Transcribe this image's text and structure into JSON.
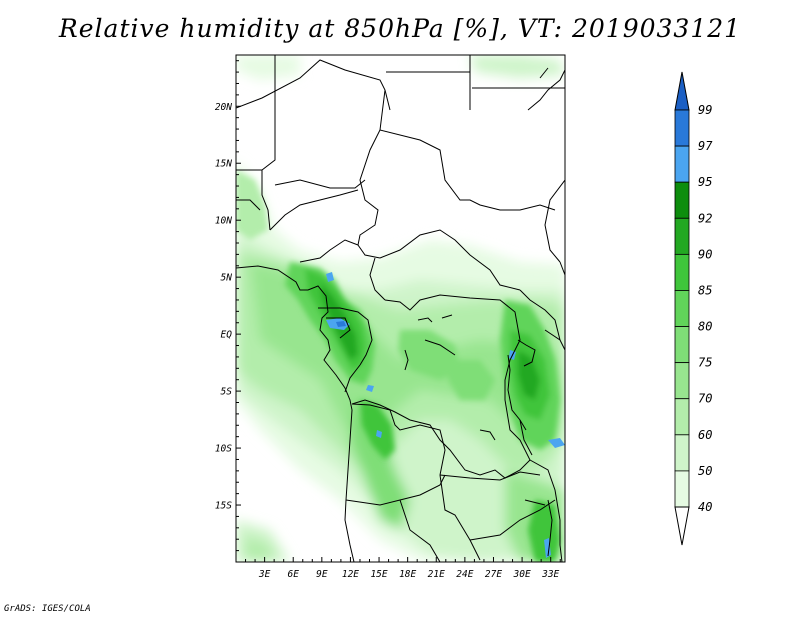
{
  "title": "Relative humidity at 850hPa [%], VT: 2019033121",
  "credit": "GrADS: IGES/COLA",
  "map": {
    "lon_range": [
      0,
      34.5
    ],
    "lat_range": [
      -20,
      24.5
    ],
    "lat_ticks": [
      "20N",
      "15N",
      "10N",
      "5N",
      "EQ",
      "5S",
      "10S",
      "15S"
    ],
    "lon_ticks": [
      "3E",
      "6E",
      "9E",
      "12E",
      "15E",
      "18E",
      "21E",
      "24E",
      "27E",
      "30E",
      "33E"
    ]
  },
  "colorbar": {
    "levels": [
      "40",
      "50",
      "60",
      "70",
      "75",
      "80",
      "85",
      "90",
      "92",
      "95",
      "97",
      "99"
    ],
    "colors": [
      "#ffffff",
      "#e6fbe3",
      "#cff4ca",
      "#b3edab",
      "#98e58f",
      "#7fde77",
      "#61d45a",
      "#3fc53b",
      "#23a822",
      "#0d8d0d",
      "#4ba5f0",
      "#2979d9",
      "#1b5fc4"
    ]
  }
}
